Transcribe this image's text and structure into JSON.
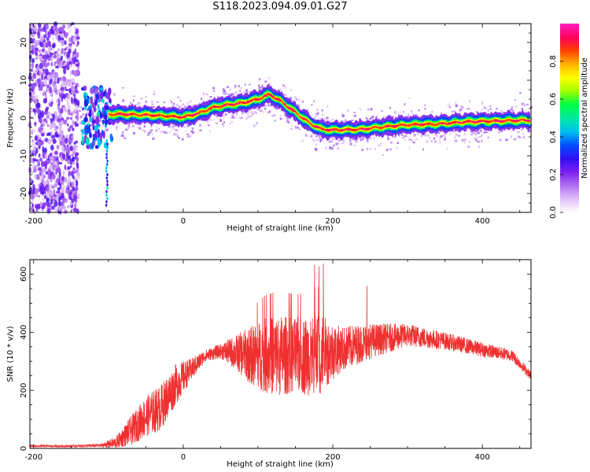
{
  "title": "S118.2023.094.09.01.G27",
  "chart_data": [
    {
      "type": "heatmap",
      "title": "S118.2023.094.09.01.G27",
      "xlabel": "Height of straight line (km)",
      "ylabel": "Frequency (Hz)",
      "xlim": [
        -205,
        465
      ],
      "ylim": [
        -25,
        25
      ],
      "xticks": [
        -200,
        0,
        200,
        400
      ],
      "yticks": [
        20,
        10,
        0,
        -10,
        -20
      ],
      "colorbar": {
        "label": "Normalized spectral amplitude",
        "range": [
          0,
          1
        ],
        "ticks": [
          0.0,
          0.2,
          0.4,
          0.6,
          0.8
        ],
        "colormap": [
          "#ffffff",
          "#e0c0f8",
          "#b070f0",
          "#7a20f0",
          "#3010f0",
          "#0050ff",
          "#00c0f0",
          "#00e8a0",
          "#00ff40",
          "#a0ff00",
          "#ffff00",
          "#ffb000",
          "#ff4000",
          "#ff0060",
          "#ff20c0"
        ]
      },
      "ridge": {
        "description": "dominant frequency vs height",
        "x": [
          -100,
          -80,
          -50,
          -20,
          0,
          20,
          40,
          60,
          80,
          100,
          115,
          130,
          150,
          170,
          185,
          200,
          240,
          260,
          300,
          340,
          380,
          420,
          465
        ],
        "y": [
          1.0,
          1.0,
          0.8,
          0.5,
          0.2,
          1.2,
          2.8,
          3.5,
          4.0,
          5.0,
          6.3,
          4.5,
          1.5,
          -1.5,
          -3.0,
          -3.2,
          -3.0,
          -2.5,
          -1.8,
          -1.6,
          -1.0,
          -0.8,
          -0.6
        ]
      },
      "noise_region": {
        "x": [
          -205,
          -140
        ],
        "y": [
          -25,
          25
        ]
      },
      "grid": false
    },
    {
      "type": "line",
      "xlabel": "Height of straight line (km)",
      "ylabel": "SNR (10 * v/v)",
      "xlim": [
        -205,
        465
      ],
      "ylim": [
        0,
        650
      ],
      "xticks": [
        -200,
        0,
        200,
        400
      ],
      "yticks": [
        0,
        200,
        400,
        600
      ],
      "color": "#f03030",
      "grid": false,
      "series": [
        {
          "x": [
            -205,
            -150,
            -110,
            -90,
            -70,
            -50,
            -30,
            -10,
            10,
            30,
            50,
            70,
            90,
            110,
            130,
            150,
            170,
            180,
            190,
            210,
            250,
            300,
            350,
            400,
            440,
            465
          ],
          "values": [
            8,
            8,
            10,
            20,
            60,
            110,
            140,
            220,
            270,
            320,
            335,
            330,
            320,
            320,
            320,
            320,
            320,
            320,
            330,
            340,
            370,
            390,
            370,
            340,
            320,
            250
          ],
          "spread": [
            4,
            4,
            6,
            20,
            50,
            70,
            80,
            70,
            40,
            20,
            25,
            60,
            100,
            130,
            140,
            130,
            140,
            150,
            120,
            80,
            60,
            40,
            30,
            25,
            20,
            15
          ]
        }
      ]
    }
  ]
}
